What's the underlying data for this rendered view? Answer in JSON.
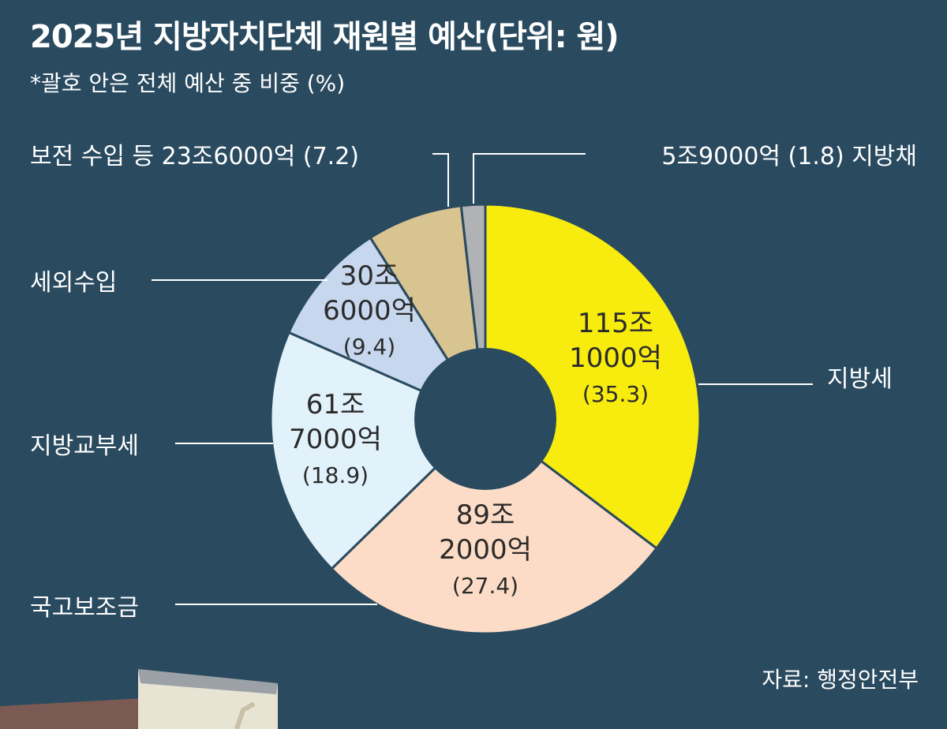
{
  "header": {
    "title": "2025년 지방자치단체 재원별 예산",
    "unit": "(단위: 원)",
    "subtitle": "*괄호 안은 전체 예산 중 비중 (%)"
  },
  "chart_data": {
    "type": "pie",
    "title": "2025년 지방자치단체 재원별 예산",
    "unit": "원",
    "slices": [
      {
        "name": "지방세",
        "amount": "115조 1000억",
        "value": 35.3,
        "color": "#f8ec0f",
        "inside_lines": [
          "115조",
          "1000억",
          "(35.3)"
        ]
      },
      {
        "name": "국고보조금",
        "amount": "89조 2000억",
        "value": 27.4,
        "color": "#fcdcc6",
        "inside_lines": [
          "89조",
          "2000억",
          "(27.4)"
        ]
      },
      {
        "name": "지방교부세",
        "amount": "61조 7000억",
        "value": 18.9,
        "color": "#e1f2fb",
        "inside_lines": [
          "61조",
          "7000억",
          "(18.9)"
        ]
      },
      {
        "name": "세외수입",
        "amount": "30조 6000억",
        "value": 9.4,
        "color": "#c6d7ee",
        "inside_lines": [
          "30조",
          "6000억",
          "(9.4)"
        ]
      },
      {
        "name": "보전 수입 등",
        "amount": "23조6000억",
        "value": 7.2,
        "color": "#d8c491",
        "outside_label": "보전 수입 등 23조6000억 (7.2)"
      },
      {
        "name": "지방채",
        "amount": "5조9000억",
        "value": 1.8,
        "color": "#b1b2b4",
        "outside_label": "5조9000억 (1.8)  지방채"
      }
    ]
  },
  "source": "자료: 행정안전부"
}
